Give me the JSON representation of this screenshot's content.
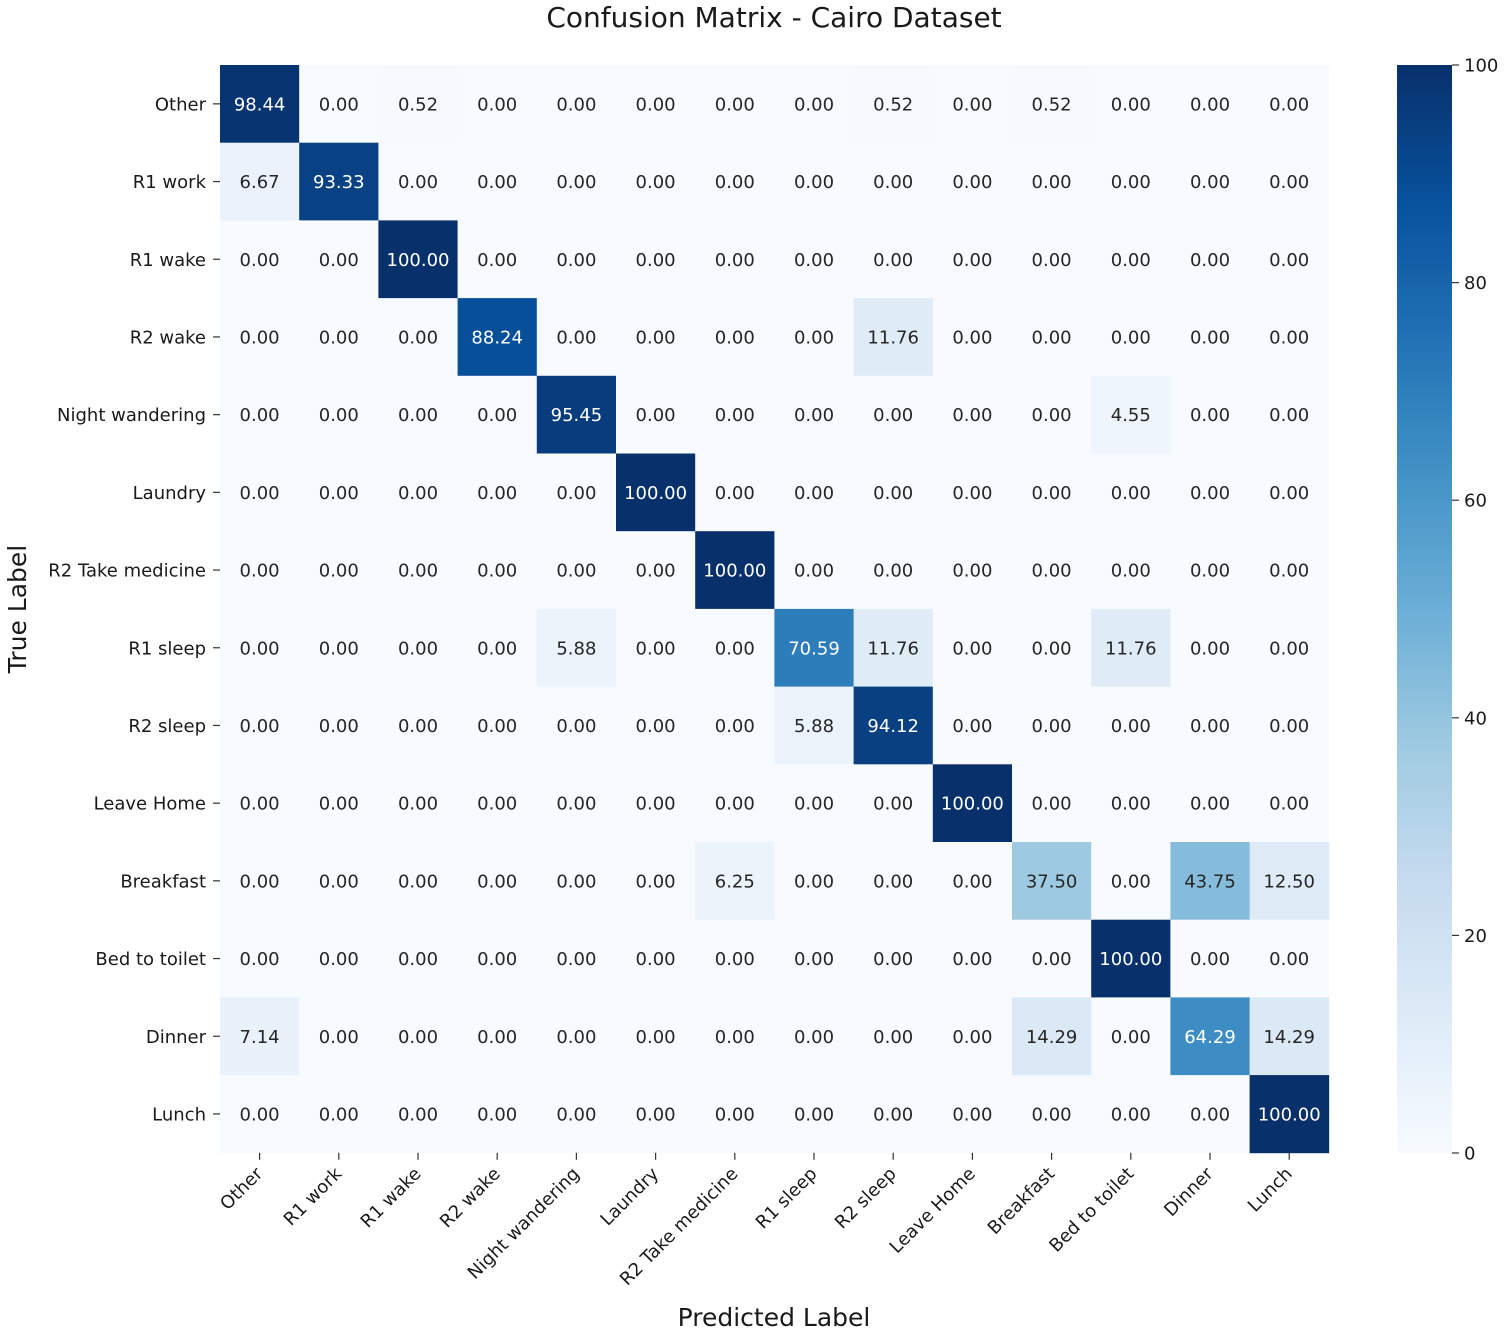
{
  "chart_data": {
    "type": "heatmap",
    "title": "Confusion Matrix - Cairo Dataset",
    "xlabel": "Predicted Label",
    "ylabel": "True Label",
    "x_categories": [
      "Other",
      "R1 work",
      "R1 wake",
      "R2 wake",
      "Night wandering",
      "Laundry",
      "R2 Take medicine",
      "R1 sleep",
      "R2 sleep",
      "Leave Home",
      "Breakfast",
      "Bed to toilet",
      "Dinner",
      "Lunch"
    ],
    "y_categories": [
      "Other",
      "R1 work",
      "R1 wake",
      "R2 wake",
      "Night wandering",
      "Laundry",
      "R2 Take medicine",
      "R1 sleep",
      "R2 sleep",
      "Leave Home",
      "Breakfast",
      "Bed to toilet",
      "Dinner",
      "Lunch"
    ],
    "values": [
      [
        98.44,
        0.0,
        0.52,
        0.0,
        0.0,
        0.0,
        0.0,
        0.0,
        0.52,
        0.0,
        0.52,
        0.0,
        0.0,
        0.0
      ],
      [
        6.67,
        93.33,
        0.0,
        0.0,
        0.0,
        0.0,
        0.0,
        0.0,
        0.0,
        0.0,
        0.0,
        0.0,
        0.0,
        0.0
      ],
      [
        0.0,
        0.0,
        100.0,
        0.0,
        0.0,
        0.0,
        0.0,
        0.0,
        0.0,
        0.0,
        0.0,
        0.0,
        0.0,
        0.0
      ],
      [
        0.0,
        0.0,
        0.0,
        88.24,
        0.0,
        0.0,
        0.0,
        0.0,
        11.76,
        0.0,
        0.0,
        0.0,
        0.0,
        0.0
      ],
      [
        0.0,
        0.0,
        0.0,
        0.0,
        95.45,
        0.0,
        0.0,
        0.0,
        0.0,
        0.0,
        0.0,
        4.55,
        0.0,
        0.0
      ],
      [
        0.0,
        0.0,
        0.0,
        0.0,
        0.0,
        100.0,
        0.0,
        0.0,
        0.0,
        0.0,
        0.0,
        0.0,
        0.0,
        0.0
      ],
      [
        0.0,
        0.0,
        0.0,
        0.0,
        0.0,
        0.0,
        100.0,
        0.0,
        0.0,
        0.0,
        0.0,
        0.0,
        0.0,
        0.0
      ],
      [
        0.0,
        0.0,
        0.0,
        0.0,
        5.88,
        0.0,
        0.0,
        70.59,
        11.76,
        0.0,
        0.0,
        11.76,
        0.0,
        0.0
      ],
      [
        0.0,
        0.0,
        0.0,
        0.0,
        0.0,
        0.0,
        0.0,
        5.88,
        94.12,
        0.0,
        0.0,
        0.0,
        0.0,
        0.0
      ],
      [
        0.0,
        0.0,
        0.0,
        0.0,
        0.0,
        0.0,
        0.0,
        0.0,
        0.0,
        100.0,
        0.0,
        0.0,
        0.0,
        0.0
      ],
      [
        0.0,
        0.0,
        0.0,
        0.0,
        0.0,
        0.0,
        6.25,
        0.0,
        0.0,
        0.0,
        37.5,
        0.0,
        43.75,
        12.5
      ],
      [
        0.0,
        0.0,
        0.0,
        0.0,
        0.0,
        0.0,
        0.0,
        0.0,
        0.0,
        0.0,
        0.0,
        100.0,
        0.0,
        0.0
      ],
      [
        7.14,
        0.0,
        0.0,
        0.0,
        0.0,
        0.0,
        0.0,
        0.0,
        0.0,
        0.0,
        14.29,
        0.0,
        64.29,
        14.29
      ],
      [
        0.0,
        0.0,
        0.0,
        0.0,
        0.0,
        0.0,
        0.0,
        0.0,
        0.0,
        0.0,
        0.0,
        0.0,
        0.0,
        100.0
      ]
    ],
    "vmin": 0,
    "vmax": 100,
    "colorbar_ticks": [
      0,
      20,
      40,
      60,
      80,
      100
    ],
    "colormap": "Blues",
    "colormap_stops": [
      "#f7fbff",
      "#deebf7",
      "#c6dbef",
      "#9ecae1",
      "#6baed6",
      "#4292c6",
      "#2171b5",
      "#08519c",
      "#08306b"
    ],
    "annotation_format": "2 decimals",
    "legend": "colorbar-right"
  }
}
